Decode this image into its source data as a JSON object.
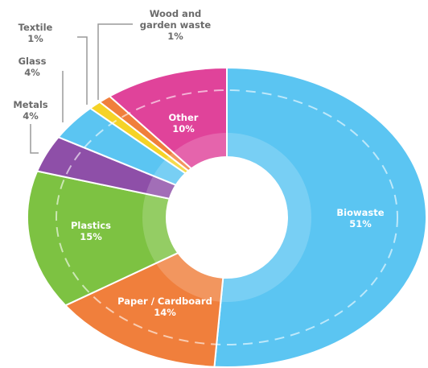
{
  "chart_data": {
    "type": "donut",
    "categories": [
      "Biowaste",
      "Paper / Cardboard",
      "Plastics",
      "Metals",
      "Glass",
      "Textile",
      "Wood and garden waste",
      "Other"
    ],
    "values": [
      51,
      14,
      15,
      4,
      4,
      1,
      1,
      10
    ],
    "value_labels": [
      "51%",
      "14%",
      "15%",
      "4%",
      "4%",
      "1%",
      "1%",
      "10%"
    ],
    "colors": [
      "#5bc5f2",
      "#f07f3c",
      "#7dc242",
      "#8e4fa8",
      "#5bc5f2",
      "#f5d327",
      "#f07f3c",
      "#e0439a"
    ]
  }
}
